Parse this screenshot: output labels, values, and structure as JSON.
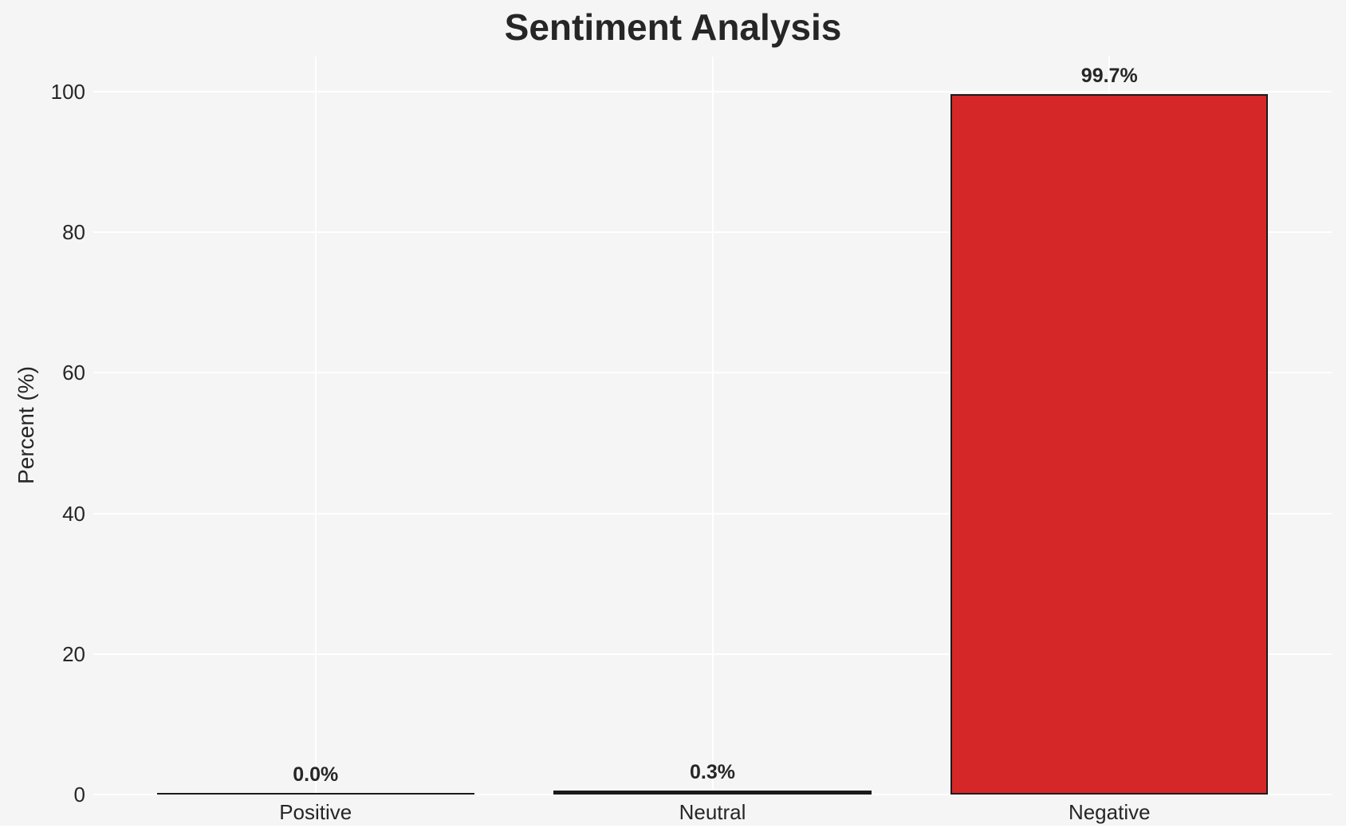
{
  "page": {
    "background": "#ffffff"
  },
  "figure": {
    "background": "#f5f5f5"
  },
  "chart_data": {
    "type": "bar",
    "title": "Sentiment Analysis",
    "xlabel": "",
    "ylabel": "Percent (%)",
    "categories": [
      "Positive",
      "Neutral",
      "Negative"
    ],
    "values": [
      0.0,
      0.3,
      99.7
    ],
    "value_labels": [
      "0.0%",
      "0.3%",
      "99.7%"
    ],
    "yticks": [
      0,
      20,
      40,
      60,
      80,
      100
    ],
    "ytick_labels": [
      "0",
      "20",
      "40",
      "60",
      "80",
      "100"
    ],
    "ylim": [
      0,
      105
    ],
    "grid": true,
    "legend": false,
    "colors": {
      "bar_fill": [
        "#1a1a1a",
        "#1a1a1a",
        "#d62728"
      ],
      "bar_edge": "#1a1a1a",
      "gridline": "#ffffff",
      "plot_background": "#f5f5f5",
      "text": "#262626"
    }
  }
}
